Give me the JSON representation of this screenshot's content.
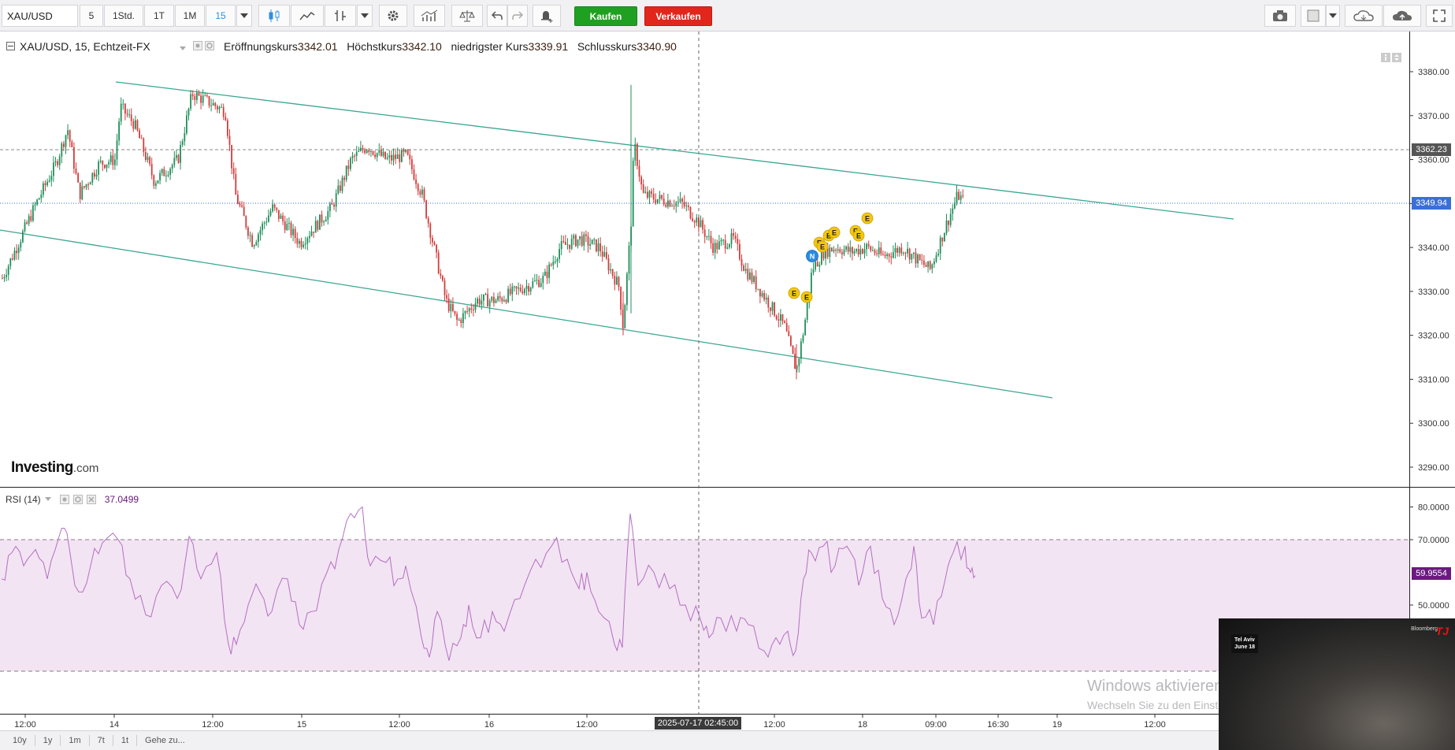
{
  "toolbar": {
    "symbol": "XAU/USD",
    "intervals": [
      "5",
      "1Std.",
      "1T",
      "1M",
      "15"
    ],
    "active_interval": "15",
    "buy_label": "Kaufen",
    "sell_label": "Verkaufen"
  },
  "chart_header": {
    "title": "XAU/USD, 15, Echtzeit-FX",
    "open_label": "Eröffnungskurs",
    "open_value": "3342.01",
    "high_label": "Höchstkurs",
    "high_value": "3342.10",
    "low_label": "niedrigster Kurs",
    "low_value": "3339.91",
    "close_label": "Schlusskurs",
    "close_value": "3340.90"
  },
  "price_axis": {
    "ticks": [
      "3380.00",
      "3370.00",
      "3360.00",
      "3350.00",
      "3340.00",
      "3330.00",
      "3320.00",
      "3310.00",
      "3300.00",
      "3290.00"
    ],
    "tag_high": "3362.23",
    "tag_current": "3349.94"
  },
  "rsi": {
    "label": "RSI (14)",
    "value": "37.0499",
    "ticks": [
      "80.0000",
      "70.0000",
      "50.0000"
    ],
    "tag_value": "59.9554"
  },
  "time_axis": {
    "labels": [
      "12:00",
      "14",
      "12:00",
      "15",
      "12:00",
      "16",
      "12:00",
      "12:00",
      "18",
      "09:00",
      "16:30",
      "19",
      "12:00"
    ],
    "crosshair_label": "2025-07-17 02:45:00"
  },
  "watermark": {
    "brand": "Investing",
    "suffix": ".com"
  },
  "event_markers": [
    "E",
    "E",
    "N",
    "E",
    "E",
    "E",
    "E",
    "E",
    "E",
    "E",
    "E"
  ],
  "bottom_ranges": [
    "10y",
    "1y",
    "1m",
    "7t",
    "1t",
    "Gehe zu..."
  ],
  "video_overlay": {
    "location": "Tel Aviv",
    "date": "June 18",
    "brand": "Bloomberg",
    "logo": "TJ"
  },
  "windows_notice": {
    "title": "Windows aktivieren",
    "subtitle": "Wechseln Sie zu den Einstellungen, um Windows zu aktivieren."
  },
  "colors": {
    "up": "#1f8f5a",
    "down": "#d23c3c",
    "channel": "#3aa690",
    "rsi": "#b56ec4",
    "rsi_band": "#f2e4f2",
    "current": "#3b6fd8"
  }
}
